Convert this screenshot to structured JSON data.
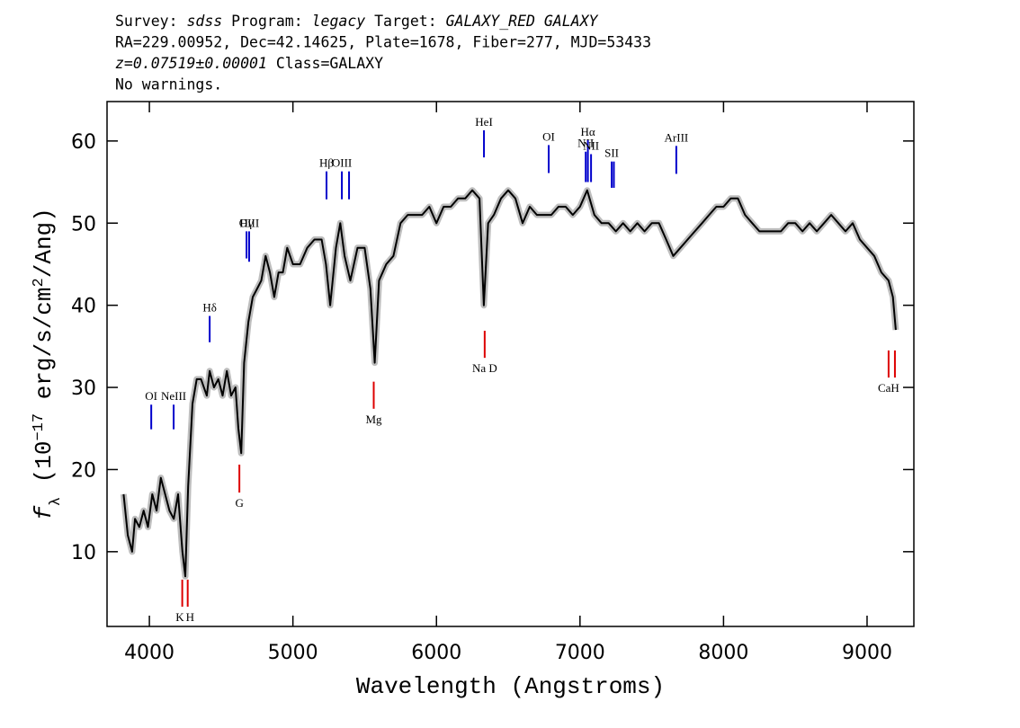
{
  "chart_data": {
    "type": "line",
    "header": [
      [
        {
          "text": "Survey: "
        },
        {
          "text": "sdss",
          "italic": true
        },
        {
          "text": " Program: "
        },
        {
          "text": "legacy",
          "italic": true
        },
        {
          "text": " Target: "
        },
        {
          "text": "GALAXY_RED GALAXY",
          "italic": true
        }
      ],
      [
        {
          "text": "RA=229.00952, Dec=42.14625, Plate=1678, Fiber=277, MJD=53433"
        }
      ],
      [
        {
          "text": "z=0.07519±0.00001",
          "italic": true
        },
        {
          "text": " Class=GALAXY"
        }
      ],
      [
        {
          "text": "No warnings."
        }
      ]
    ],
    "xlabel": "Wavelength (Angstroms)",
    "ylabel": [
      {
        "text": "f",
        "style": "italic"
      },
      {
        "text": "λ",
        "style": "sub"
      },
      {
        "text": " (10"
      },
      {
        "text": "−17",
        "style": "sup"
      },
      {
        "text": " erg/s/cm"
      },
      {
        "text": "2",
        "style": "sup"
      },
      {
        "text": "/Ang)"
      }
    ],
    "x": [
      3820,
      3850,
      3880,
      3900,
      3930,
      3960,
      3990,
      4020,
      4050,
      4080,
      4110,
      4140,
      4170,
      4200,
      4230,
      4250,
      4270,
      4300,
      4330,
      4360,
      4400,
      4420,
      4450,
      4480,
      4510,
      4540,
      4570,
      4600,
      4620,
      4640,
      4660,
      4690,
      4720,
      4750,
      4780,
      4810,
      4840,
      4870,
      4900,
      4930,
      4960,
      5000,
      5050,
      5100,
      5150,
      5200,
      5230,
      5260,
      5300,
      5330,
      5360,
      5400,
      5450,
      5500,
      5540,
      5570,
      5600,
      5650,
      5700,
      5750,
      5800,
      5850,
      5900,
      5950,
      6000,
      6050,
      6100,
      6150,
      6200,
      6250,
      6300,
      6330,
      6360,
      6400,
      6450,
      6500,
      6550,
      6600,
      6650,
      6700,
      6750,
      6800,
      6850,
      6900,
      6950,
      7000,
      7050,
      7100,
      7150,
      7200,
      7250,
      7300,
      7350,
      7400,
      7450,
      7500,
      7550,
      7600,
      7650,
      7700,
      7750,
      7800,
      7850,
      7900,
      7950,
      8000,
      8050,
      8100,
      8150,
      8200,
      8250,
      8300,
      8350,
      8400,
      8450,
      8500,
      8550,
      8600,
      8650,
      8700,
      8750,
      8800,
      8850,
      8900,
      8950,
      9000,
      9050,
      9100,
      9150,
      9180,
      9200
    ],
    "values": [
      17,
      12,
      10,
      14,
      13,
      15,
      13,
      17,
      15,
      19,
      17,
      15,
      14,
      17,
      10,
      7,
      18,
      28,
      31,
      31,
      29,
      32,
      30,
      31,
      29,
      32,
      29,
      30,
      25,
      22,
      33,
      38,
      41,
      42,
      43,
      46,
      44,
      41,
      44,
      44,
      47,
      45,
      45,
      47,
      48,
      48,
      45,
      40,
      47,
      50,
      46,
      43,
      47,
      47,
      42,
      33,
      43,
      45,
      46,
      50,
      51,
      51,
      51,
      52,
      50,
      52,
      52,
      53,
      53,
      54,
      53,
      40,
      50,
      51,
      53,
      54,
      53,
      50,
      52,
      51,
      51,
      51,
      52,
      52,
      51,
      52,
      54,
      51,
      50,
      50,
      49,
      50,
      49,
      50,
      49,
      50,
      50,
      48,
      46,
      47,
      48,
      49,
      50,
      51,
      52,
      52,
      53,
      53,
      51,
      50,
      49,
      49,
      49,
      49,
      50,
      50,
      49,
      50,
      49,
      50,
      51,
      50,
      49,
      50,
      48,
      47,
      46,
      44,
      43,
      41,
      37
    ],
    "color": "#000000",
    "band_color": "#bdbdbd",
    "xlim": [
      3705,
      9326
    ],
    "ylim": [
      0.9,
      64.8
    ],
    "xticks": [
      4000,
      5000,
      6000,
      7000,
      8000,
      9000
    ],
    "yticks": [
      10,
      20,
      30,
      40,
      50,
      60
    ],
    "emission_color": "#0000cc",
    "absorption_color": "#dd0000",
    "emission_lines": [
      {
        "label": "OI",
        "x": 4013,
        "y": [
          24.9,
          27.9
        ]
      },
      {
        "label": "NeIII",
        "x": 4169,
        "y": [
          24.9,
          27.9
        ]
      },
      {
        "label": "Hδ",
        "x": 4420,
        "y": [
          35.5,
          38.7
        ]
      },
      {
        "label": "Hγ",
        "x": 4677,
        "y": [
          45.7,
          49.0
        ]
      },
      {
        "label": "OIII",
        "x": 4695,
        "y": [
          45.3,
          49.0
        ]
      },
      {
        "label": "Hβ",
        "x": 5234,
        "y": [
          52.9,
          56.3
        ]
      },
      {
        "label": "OIII",
        "x": 5341,
        "y": [
          52.9,
          56.3
        ]
      },
      {
        "label": null,
        "x": 5391,
        "y": [
          52.9,
          56.3
        ]
      },
      {
        "label": "HeI",
        "x": 6331,
        "y": [
          58.0,
          61.3
        ]
      },
      {
        "label": "OI",
        "x": 6782,
        "y": [
          56.1,
          59.5
        ]
      },
      {
        "label": "NII",
        "x": 7040,
        "y": [
          55.0,
          58.7
        ]
      },
      {
        "label": "Hα",
        "x": 7055,
        "y": [
          55.0,
          60.1
        ]
      },
      {
        "label": "NII",
        "x": 7077,
        "y": [
          55.0,
          58.4
        ]
      },
      {
        "label": "SII",
        "x": 7221,
        "y": [
          54.3,
          57.5
        ]
      },
      {
        "label": null,
        "x": 7236,
        "y": [
          54.3,
          57.5
        ]
      },
      {
        "label": "ArIII",
        "x": 7671,
        "y": [
          56.0,
          59.4
        ]
      }
    ],
    "absorption_lines": [
      {
        "label": "K",
        "x": 4229,
        "y": [
          3.3,
          6.6
        ]
      },
      {
        "label": "H",
        "x": 4267,
        "y": [
          3.3,
          6.6
        ]
      },
      {
        "label": "G",
        "x": 4627,
        "y": [
          17.2,
          20.6
        ]
      },
      {
        "label": "Mg",
        "x": 5563,
        "y": [
          27.4,
          30.7
        ]
      },
      {
        "label": "Na D",
        "x": 6336,
        "y": [
          33.6,
          36.9
        ]
      },
      {
        "label": "CaH",
        "x": 9150,
        "y": [
          31.2,
          34.5
        ]
      },
      {
        "label": null,
        "x": 9194,
        "y": [
          31.2,
          34.5
        ]
      }
    ]
  }
}
